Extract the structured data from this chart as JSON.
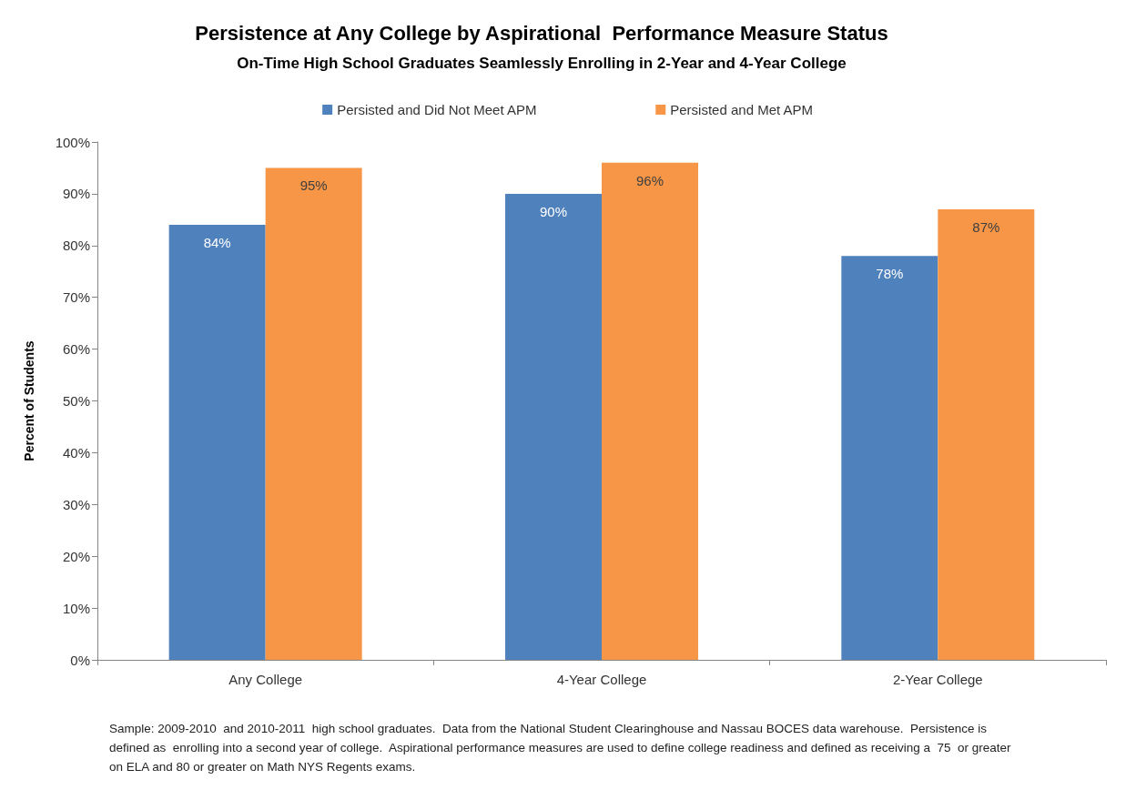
{
  "chart_data": {
    "type": "bar",
    "title": "Persistence at Any College by Aspirational  Performance Measure Status",
    "subtitle": "On-Time High School Graduates Seamlessly Enrolling in 2-Year and 4-Year College",
    "ylabel": "Percent of Students",
    "categories": [
      "Any College",
      "4-Year College",
      "2-Year College"
    ],
    "series": [
      {
        "name": "Persisted and Did Not Meet APM",
        "color": "#4f81bd",
        "values": [
          84,
          90,
          78
        ],
        "value_labels": [
          "84%",
          "90%",
          "78%"
        ]
      },
      {
        "name": "Persisted and Met APM",
        "color": "#f79646",
        "values": [
          95,
          96,
          87
        ],
        "value_labels": [
          "95%",
          "96%",
          "87%"
        ]
      }
    ],
    "ylim": [
      0,
      100
    ],
    "yticks": [
      {
        "value": 0,
        "label": "0%"
      },
      {
        "value": 10,
        "label": "10%"
      },
      {
        "value": 20,
        "label": "20%"
      },
      {
        "value": 30,
        "label": "30%"
      },
      {
        "value": 40,
        "label": "40%"
      },
      {
        "value": 50,
        "label": "50%"
      },
      {
        "value": 60,
        "label": "60%"
      },
      {
        "value": 70,
        "label": "70%"
      },
      {
        "value": 80,
        "label": "80%"
      },
      {
        "value": 90,
        "label": "90%"
      },
      {
        "value": 100,
        "label": "100%"
      }
    ],
    "grid": false,
    "legend": "top",
    "annotations": [
      "Sample: 2009-2010  and 2010-2011  high school graduates.  Data from the National Student Clearinghouse and Nassau BOCES data warehouse.  Persistence is defined as  enrolling into a second year of college.  Aspirational performance measures are used to define college readiness and defined as receiving a  75  or greater on ELA and 80 or greater on Math NYS Regents exams."
    ]
  }
}
